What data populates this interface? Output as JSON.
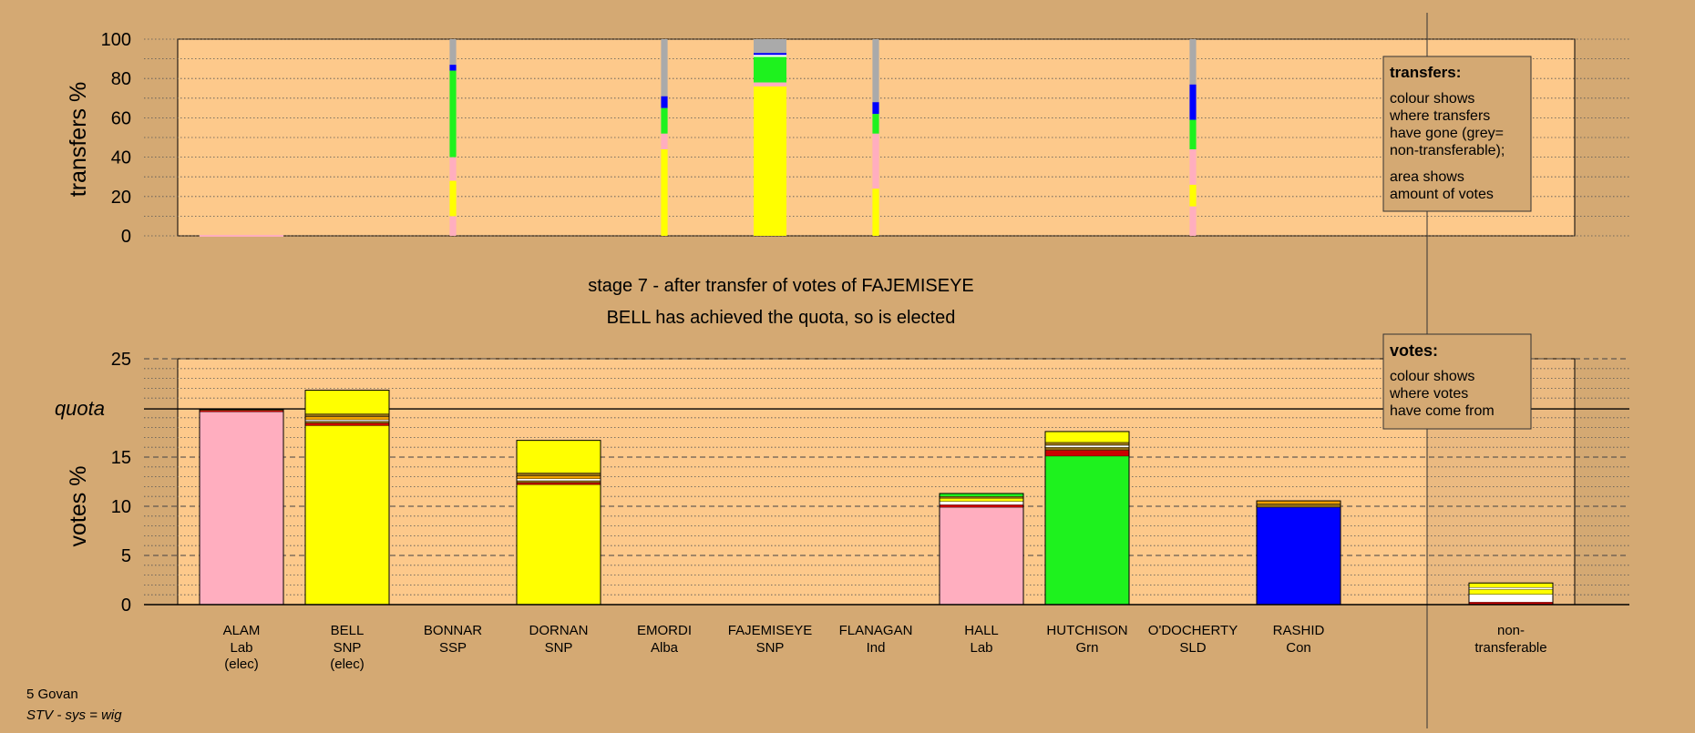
{
  "footer": {
    "constituency": "5 Govan",
    "system": "STV - sys = wig"
  },
  "stage_title": "stage 7 - after transfer of votes of FAJEMISEYE",
  "stage_subtitle": "BELL has achieved the quota, so is elected",
  "colors": {
    "Lab": "#ffaebf",
    "SNP": "#ffff00",
    "Grn": "#1ef21e",
    "Con": "#0000ff",
    "SSP": "#cc0000",
    "Alba": "#8b6914",
    "Ind": "#ffffff",
    "SLD": "#f0a000",
    "NT": "#aaaaaa",
    "plot_bg": "#fdc98b",
    "page_bg": "#d4a973"
  },
  "chart_data": [
    {
      "id": "transfers",
      "type": "bar",
      "ylabel": "transfers %",
      "ylim": [
        0,
        100
      ],
      "yticks": [
        0,
        20,
        40,
        60,
        80,
        100
      ],
      "grid": "dotted",
      "legend": {
        "position": "top-right",
        "title": "transfers:",
        "lines": [
          "colour shows",
          "where transfers",
          "have gone (grey=",
          "non-transferable);"
        ],
        "lines2": [
          "area shows",
          "amount of votes"
        ]
      },
      "bars": [
        {
          "candidate": "BONNAR",
          "width": 0.4,
          "segments": [
            {
              "party": "Lab",
              "value": 10
            },
            {
              "party": "SNP",
              "value": 18
            },
            {
              "party": "Lab",
              "value": 12
            },
            {
              "party": "Grn",
              "value": 44
            },
            {
              "party": "Con",
              "value": 3
            },
            {
              "party": "NT",
              "value": 13
            }
          ]
        },
        {
          "candidate": "EMORDI",
          "width": 0.4,
          "segments": [
            {
              "party": "SNP",
              "value": 44
            },
            {
              "party": "Lab",
              "value": 8
            },
            {
              "party": "Grn",
              "value": 13
            },
            {
              "party": "Con",
              "value": 6
            },
            {
              "party": "NT",
              "value": 29
            }
          ]
        },
        {
          "candidate": "FAJEMISEYE",
          "width": 2.0,
          "segments": [
            {
              "party": "SNP",
              "value": 76
            },
            {
              "party": "Lab",
              "value": 2
            },
            {
              "party": "Grn",
              "value": 13
            },
            {
              "party": "Ind",
              "value": 1
            },
            {
              "party": "Con",
              "value": 1
            },
            {
              "party": "NT",
              "value": 7
            }
          ]
        },
        {
          "candidate": "FLANAGAN",
          "width": 0.4,
          "segments": [
            {
              "party": "SNP",
              "value": 24
            },
            {
              "party": "Lab",
              "value": 28
            },
            {
              "party": "Grn",
              "value": 10
            },
            {
              "party": "Con",
              "value": 6
            },
            {
              "party": "NT",
              "value": 32
            }
          ]
        },
        {
          "candidate": "O'DOCHERTY",
          "width": 0.4,
          "segments": [
            {
              "party": "Lab",
              "value": 15
            },
            {
              "party": "SNP",
              "value": 11
            },
            {
              "party": "Lab",
              "value": 18
            },
            {
              "party": "Grn",
              "value": 15
            },
            {
              "party": "Con",
              "value": 18
            },
            {
              "party": "NT",
              "value": 23
            }
          ]
        }
      ]
    },
    {
      "id": "votes",
      "type": "bar",
      "ylabel": "votes %",
      "ylim": [
        0,
        25
      ],
      "yticks": [
        0,
        5,
        10,
        15,
        20,
        25
      ],
      "quota": 19.9,
      "quota_label": "quota",
      "grid": "dotted",
      "legend": {
        "position": "top-right",
        "title": "votes:",
        "lines": [
          "colour shows",
          "where votes",
          "have come from"
        ]
      },
      "categories": [
        {
          "name": "ALAM",
          "party": "Lab",
          "note": "(elec)"
        },
        {
          "name": "BELL",
          "party": "SNP",
          "note": "(elec)"
        },
        {
          "name": "BONNAR",
          "party": "SSP",
          "note": ""
        },
        {
          "name": "DORNAN",
          "party": "SNP",
          "note": ""
        },
        {
          "name": "EMORDI",
          "party": "Alba",
          "note": ""
        },
        {
          "name": "FAJEMISEYE",
          "party": "SNP",
          "note": ""
        },
        {
          "name": "FLANAGAN",
          "party": "Ind",
          "note": ""
        },
        {
          "name": "HALL",
          "party": "Lab",
          "note": ""
        },
        {
          "name": "HUTCHISON",
          "party": "Grn",
          "note": ""
        },
        {
          "name": "O'DOCHERTY",
          "party": "SLD",
          "note": ""
        },
        {
          "name": "RASHID",
          "party": "Con",
          "note": ""
        }
      ],
      "nt_label": [
        "non-",
        "transferable"
      ],
      "bars": [
        {
          "candidate": "ALAM",
          "segments": [
            {
              "party": "Lab",
              "value": 19.6
            },
            {
              "party": "SSP",
              "value": 0.15
            },
            {
              "party": "Alba",
              "value": 0.1
            }
          ]
        },
        {
          "candidate": "BELL",
          "segments": [
            {
              "party": "SNP",
              "value": 18.2
            },
            {
              "party": "SSP",
              "value": 0.25
            },
            {
              "party": "Alba",
              "value": 0.2
            },
            {
              "party": "Ind",
              "value": 0.15
            },
            {
              "party": "SLD",
              "value": 0.3
            },
            {
              "party": "Alba",
              "value": 0.3
            },
            {
              "party": "SNP",
              "value": 2.4
            }
          ]
        },
        {
          "candidate": "BONNAR",
          "segments": []
        },
        {
          "candidate": "DORNAN",
          "segments": [
            {
              "party": "SNP",
              "value": 12.2
            },
            {
              "party": "SSP",
              "value": 0.2
            },
            {
              "party": "Alba",
              "value": 0.2
            },
            {
              "party": "Ind",
              "value": 0.2
            },
            {
              "party": "SLD",
              "value": 0.3
            },
            {
              "party": "Alba",
              "value": 0.3
            },
            {
              "party": "SNP",
              "value": 3.3
            }
          ]
        },
        {
          "candidate": "EMORDI",
          "segments": []
        },
        {
          "candidate": "FAJEMISEYE",
          "segments": []
        },
        {
          "candidate": "FLANAGAN",
          "segments": []
        },
        {
          "candidate": "HALL",
          "segments": [
            {
              "party": "Lab",
              "value": 9.9
            },
            {
              "party": "SSP",
              "value": 0.25
            },
            {
              "party": "Ind",
              "value": 0.35
            },
            {
              "party": "SNP",
              "value": 0.3
            },
            {
              "party": "Alba",
              "value": 0.2
            },
            {
              "party": "Grn",
              "value": 0.3
            }
          ]
        },
        {
          "candidate": "HUTCHISON",
          "segments": [
            {
              "party": "Grn",
              "value": 15.1
            },
            {
              "party": "SSP",
              "value": 0.6
            },
            {
              "party": "Alba",
              "value": 0.3
            },
            {
              "party": "Ind",
              "value": 0.2
            },
            {
              "party": "Alba",
              "value": 0.3
            },
            {
              "party": "SNP",
              "value": 1.1
            }
          ]
        },
        {
          "candidate": "O'DOCHERTY",
          "segments": []
        },
        {
          "candidate": "RASHID",
          "segments": [
            {
              "party": "Con",
              "value": 9.9
            },
            {
              "party": "Alba",
              "value": 0.35
            },
            {
              "party": "SLD",
              "value": 0.3
            }
          ]
        },
        {
          "candidate": "non-transferable",
          "segments": [
            {
              "party": "SSP",
              "value": 0.25
            },
            {
              "party": "Ind",
              "value": 0.8
            },
            {
              "party": "SNP",
              "value": 0.5
            },
            {
              "party": "Ind",
              "value": 0.2
            },
            {
              "party": "SNP",
              "value": 0.45
            }
          ]
        }
      ]
    }
  ]
}
